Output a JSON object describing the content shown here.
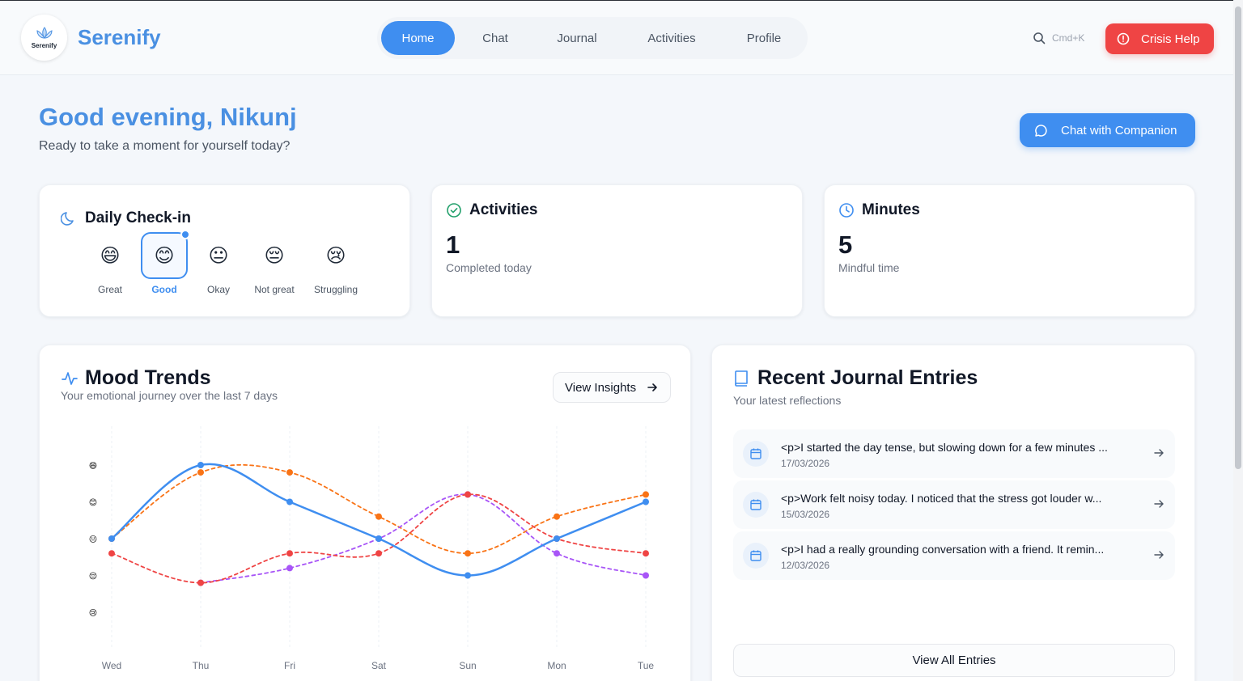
{
  "header": {
    "logo_caption": "Serenify",
    "brand": "Serenify",
    "nav": [
      "Home",
      "Chat",
      "Journal",
      "Activities",
      "Profile"
    ],
    "active_nav": "Home",
    "search_hint": "Cmd+K",
    "crisis_label": "Crisis Help"
  },
  "welcome": {
    "greeting": "Good evening, Nikunj",
    "subtitle": "Ready to take a moment for yourself today?",
    "chat_button": "Chat with Companion"
  },
  "checkin": {
    "title": "Daily Check-in",
    "moods": [
      {
        "label": "Great",
        "emoji": "😄"
      },
      {
        "label": "Good",
        "emoji": "😊"
      },
      {
        "label": "Okay",
        "emoji": "😐"
      },
      {
        "label": "Not great",
        "emoji": "😔"
      },
      {
        "label": "Struggling",
        "emoji": "😢"
      }
    ],
    "selected": "Good"
  },
  "stats": {
    "activities": {
      "title": "Activities",
      "value": "1",
      "caption": "Completed today"
    },
    "minutes": {
      "title": "Minutes",
      "value": "5",
      "caption": "Mindful time"
    }
  },
  "trends": {
    "title": "Mood Trends",
    "subtitle": "Your emotional journey over the last 7 days",
    "insights_button": "View Insights"
  },
  "chart_data": {
    "type": "line",
    "categories": [
      "Wed",
      "Thu",
      "Fri",
      "Sat",
      "Sun",
      "Mon",
      "Tue"
    ],
    "y_levels": [
      "😄",
      "😊",
      "😐",
      "😔",
      "😢"
    ],
    "ylim": [
      1,
      5
    ],
    "grid": true,
    "series": [
      {
        "color": "#3f8ef0",
        "style": "solid",
        "values": [
          3,
          5,
          4,
          3,
          2,
          3,
          4
        ]
      },
      {
        "color": "#f97316",
        "style": "dashed",
        "values": [
          3,
          4.8,
          4.8,
          3.6,
          2.6,
          3.6,
          4.2
        ]
      },
      {
        "color": "#a855f7",
        "style": "dashed",
        "values": null,
        "points": [
          [
            1,
            1.8
          ],
          [
            2,
            2.2
          ],
          [
            3,
            3
          ],
          [
            4,
            4.2
          ],
          [
            5,
            2.6
          ],
          [
            6,
            2
          ]
        ]
      },
      {
        "color": "#ef4444",
        "style": "dashed",
        "values": [
          2.6,
          1.8,
          2.6,
          2.6,
          4.2,
          3,
          2.6
        ]
      }
    ]
  },
  "journal": {
    "title": "Recent Journal Entries",
    "subtitle": "Your latest reflections",
    "entries": [
      {
        "text": "<p>I started the day tense, but slowing down for a few minutes ...",
        "date": "17/03/2026"
      },
      {
        "text": "<p>Work felt noisy today. I noticed that the stress got louder w...",
        "date": "15/03/2026"
      },
      {
        "text": "<p>I had a really grounding conversation with a friend. It remin...",
        "date": "12/03/2026"
      }
    ],
    "view_all": "View All Entries"
  },
  "colors": {
    "accent": "#3f8ef0",
    "danger": "#ef4444",
    "brand": "#4a90e2"
  }
}
